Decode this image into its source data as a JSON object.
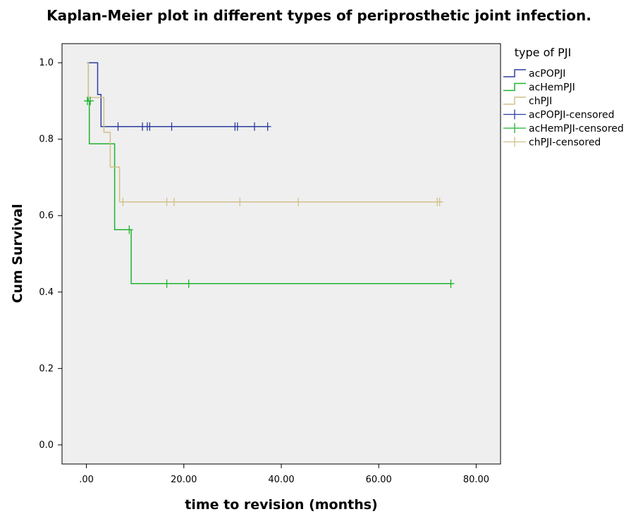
{
  "chart_data": {
    "type": "line",
    "subtype": "kaplan-meier",
    "title": "Kaplan-Meier plot in different types of periprosthetic joint infection.",
    "xlabel": "time to revision (months)",
    "ylabel": "Cum Survival",
    "xlim": [
      -5,
      85
    ],
    "ylim": [
      -0.05,
      1.05
    ],
    "x_ticks": [
      0,
      20,
      40,
      60,
      80
    ],
    "x_tick_labels": [
      ".00",
      "20.00",
      "40.00",
      "60.00",
      "80.00"
    ],
    "y_ticks": [
      0.0,
      0.2,
      0.4,
      0.6,
      0.8,
      1.0
    ],
    "y_tick_labels": [
      "0.0",
      "0.2",
      "0.4",
      "0.6",
      "0.8",
      "1.0"
    ],
    "grid": false,
    "plot_background": "#efefef",
    "legend": {
      "title": "type of PJI",
      "placement": "right",
      "entries": [
        "acPOPJI",
        "acHemPJI",
        "chPJI",
        "acPOPJI-censored",
        "acHemPJI-censored",
        "chPJI-censored"
      ]
    },
    "series": [
      {
        "name": "acPOPJI",
        "color": "#2b3d9e",
        "steps": [
          [
            0.5,
            1.0
          ],
          [
            2.3,
            1.0
          ],
          [
            2.3,
            0.917
          ],
          [
            3.0,
            0.917
          ],
          [
            3.0,
            0.833
          ],
          [
            37.5,
            0.833
          ]
        ],
        "censored": [
          6.5,
          11.5,
          12.5,
          13.0,
          17.5,
          30.5,
          31.0,
          34.5,
          37.2
        ]
      },
      {
        "name": "acHemPJI",
        "color": "#1fb32e",
        "steps": [
          [
            0.1,
            1.0
          ],
          [
            0.4,
            1.0
          ],
          [
            0.4,
            0.9
          ],
          [
            0.6,
            0.9
          ],
          [
            0.6,
            0.788
          ],
          [
            5.8,
            0.788
          ],
          [
            5.8,
            0.563
          ],
          [
            9.2,
            0.563
          ],
          [
            9.2,
            0.422
          ],
          [
            75.0,
            0.422
          ]
        ],
        "censored_points": [
          [
            0.2,
            0.9
          ],
          [
            0.8,
            0.9
          ],
          [
            8.8,
            0.563
          ],
          [
            16.5,
            0.422
          ],
          [
            21.0,
            0.422
          ],
          [
            74.8,
            0.422
          ]
        ]
      },
      {
        "name": "chPJI",
        "color": "#d2c089",
        "steps": [
          [
            0.1,
            1.0
          ],
          [
            0.4,
            1.0
          ],
          [
            0.4,
            0.909
          ],
          [
            3.6,
            0.909
          ],
          [
            3.6,
            0.818
          ],
          [
            4.9,
            0.818
          ],
          [
            4.9,
            0.727
          ],
          [
            6.8,
            0.727
          ],
          [
            6.8,
            0.636
          ],
          [
            73.0,
            0.636
          ]
        ],
        "censored": [
          7.5,
          16.5,
          18.0,
          31.5,
          43.5,
          72.0,
          72.5
        ]
      }
    ]
  }
}
